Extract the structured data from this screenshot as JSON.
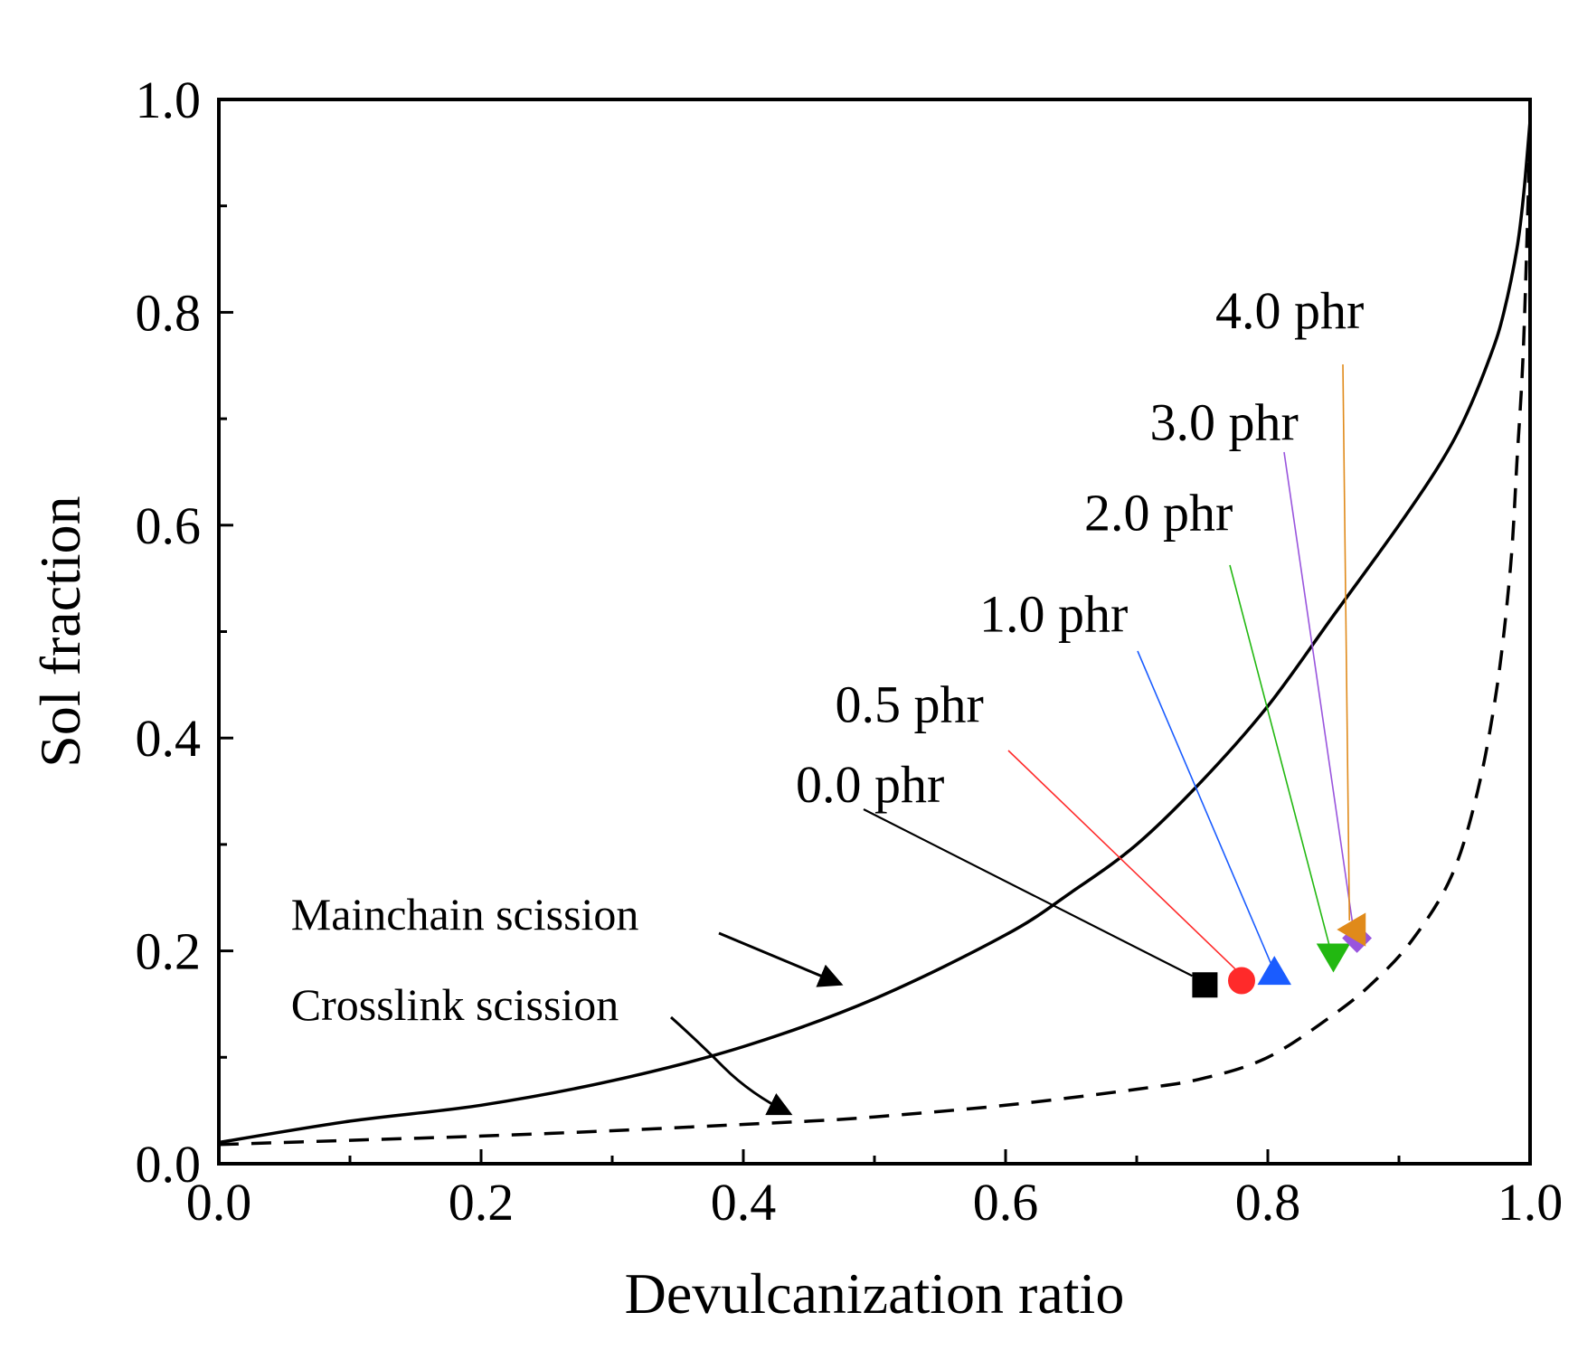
{
  "chart_data": {
    "type": "scatter",
    "title": "",
    "xlabel": "Devulcanization ratio",
    "ylabel": "Sol fraction",
    "xlim": [
      0.0,
      1.0
    ],
    "ylim": [
      0.0,
      1.0
    ],
    "xticks": [
      "0.0",
      "0.2",
      "0.4",
      "0.6",
      "0.8",
      "1.0"
    ],
    "yticks": [
      "0.0",
      "0.2",
      "0.4",
      "0.6",
      "0.8",
      "1.0"
    ],
    "grid": false,
    "curves": [
      {
        "name": "Mainchain scission",
        "style": "solid",
        "color": "#000000",
        "x": [
          0.0,
          0.1,
          0.2,
          0.3,
          0.4,
          0.5,
          0.6,
          0.65,
          0.7,
          0.75,
          0.8,
          0.85,
          0.9,
          0.93,
          0.95,
          0.97,
          0.98,
          0.99,
          0.995,
          1.0
        ],
        "y": [
          0.02,
          0.04,
          0.055,
          0.078,
          0.11,
          0.155,
          0.215,
          0.255,
          0.3,
          0.36,
          0.43,
          0.515,
          0.6,
          0.655,
          0.7,
          0.76,
          0.8,
          0.86,
          0.91,
          0.98
        ]
      },
      {
        "name": "Crosslink scission",
        "style": "dashed",
        "color": "#000000",
        "x": [
          0.0,
          0.1,
          0.2,
          0.3,
          0.4,
          0.45,
          0.5,
          0.6,
          0.7,
          0.75,
          0.8,
          0.85,
          0.88,
          0.91,
          0.94,
          0.96,
          0.975,
          0.985,
          0.99,
          0.995,
          1.0
        ],
        "y": [
          0.018,
          0.022,
          0.026,
          0.031,
          0.037,
          0.04,
          0.044,
          0.055,
          0.07,
          0.08,
          0.1,
          0.14,
          0.17,
          0.21,
          0.27,
          0.35,
          0.45,
          0.56,
          0.66,
          0.77,
          0.97
        ]
      }
    ],
    "series": [
      {
        "name": "0.0 phr",
        "x": 0.752,
        "y": 0.168,
        "marker": "square",
        "color": "#000000"
      },
      {
        "name": "0.5 phr",
        "x": 0.78,
        "y": 0.172,
        "marker": "circle",
        "color": "#ff2a2a"
      },
      {
        "name": "1.0 phr",
        "x": 0.805,
        "y": 0.18,
        "marker": "triangle-up",
        "color": "#1a5cff"
      },
      {
        "name": "2.0 phr",
        "x": 0.85,
        "y": 0.195,
        "marker": "triangle-down",
        "color": "#22b811"
      },
      {
        "name": "3.0 phr",
        "x": 0.868,
        "y": 0.212,
        "marker": "diamond",
        "color": "#9955dd"
      },
      {
        "name": "4.0 phr",
        "x": 0.865,
        "y": 0.22,
        "marker": "triangle-left",
        "color": "#e08a1a"
      }
    ],
    "point_labels": [
      {
        "text": "0.0 phr",
        "x": 0.44,
        "y": 0.34
      },
      {
        "text": "0.5 phr",
        "x": 0.47,
        "y": 0.415
      },
      {
        "text": "1.0 phr",
        "x": 0.58,
        "y": 0.5
      },
      {
        "text": "2.0 phr",
        "x": 0.66,
        "y": 0.595
      },
      {
        "text": "3.0 phr",
        "x": 0.71,
        "y": 0.68
      },
      {
        "text": "4.0 phr",
        "x": 0.76,
        "y": 0.785
      }
    ],
    "curve_labels": [
      {
        "text": "Mainchain scission",
        "x": 0.055,
        "y": 0.22,
        "arrow_to": [
          0.48,
          0.155
        ]
      },
      {
        "text": "Crosslink scission",
        "x": 0.055,
        "y": 0.135,
        "arrow_to": [
          0.44,
          0.04
        ]
      }
    ]
  }
}
